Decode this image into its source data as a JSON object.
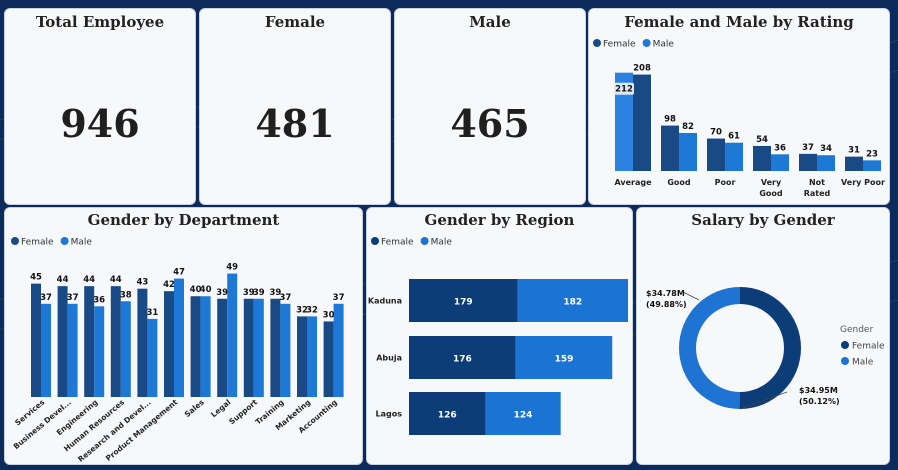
{
  "colors": {
    "female": "#1a4a86",
    "male": "#1e78d6",
    "male_light": "#2b82df",
    "donut_female": "#0d3d78",
    "donut_male": "#1f73d2",
    "region_female": "#0d3d78",
    "region_male": "#1b74d4"
  },
  "kpis": {
    "total": {
      "title": "Total Employee",
      "value": "946"
    },
    "female": {
      "title": "Female",
      "value": "481"
    },
    "male": {
      "title": "Male",
      "value": "465"
    }
  },
  "chart_data": [
    {
      "type": "bar",
      "title": "Female and Male by Rating",
      "legend": [
        "Female",
        "Male"
      ],
      "legend_placement": "top-left",
      "categories": [
        "Average",
        "Good",
        "Poor",
        "Very Good",
        "Not Rated",
        "Very Poor"
      ],
      "series": [
        {
          "name": "Female",
          "values": [
            212,
            98,
            70,
            54,
            37,
            31
          ]
        },
        {
          "name": "Male",
          "values": [
            208,
            82,
            61,
            36,
            34,
            23
          ]
        }
      ],
      "ylim": [
        0,
        220
      ]
    },
    {
      "type": "bar",
      "title": "Gender by Department",
      "legend": [
        "Female",
        "Male"
      ],
      "legend_placement": "top-left",
      "categories": [
        "Services",
        "Business Devel...",
        "Engineering",
        "Human Resources",
        "Research and Devel...",
        "Product Management",
        "Sales",
        "Legal",
        "Support",
        "Training",
        "Marketing",
        "Accounting"
      ],
      "series": [
        {
          "name": "Female",
          "values": [
            45,
            44,
            44,
            44,
            43,
            42,
            40,
            39,
            39,
            39,
            32,
            30
          ]
        },
        {
          "name": "Male",
          "values": [
            37,
            37,
            36,
            38,
            31,
            47,
            40,
            49,
            39,
            37,
            32,
            37
          ]
        }
      ],
      "ylim": [
        0,
        52
      ]
    },
    {
      "type": "bar",
      "orientation": "horizontal-stacked",
      "title": "Gender by Region",
      "legend": [
        "Female",
        "Male"
      ],
      "legend_placement": "top-left",
      "categories": [
        "Kaduna",
        "Abuja",
        "Lagos"
      ],
      "series": [
        {
          "name": "Female",
          "values": [
            179,
            176,
            126
          ]
        },
        {
          "name": "Male",
          "values": [
            182,
            159,
            124
          ]
        }
      ]
    },
    {
      "type": "pie",
      "subtype": "donut",
      "title": "Salary by Gender",
      "legend_title": "Gender",
      "legend_placement": "right",
      "slices": [
        {
          "name": "Female",
          "value": "$34.95M",
          "percent": "(50.12%)",
          "share": 50.12
        },
        {
          "name": "Male",
          "value": "$34.78M",
          "percent": "(49.88%)",
          "share": 49.88
        }
      ]
    }
  ]
}
